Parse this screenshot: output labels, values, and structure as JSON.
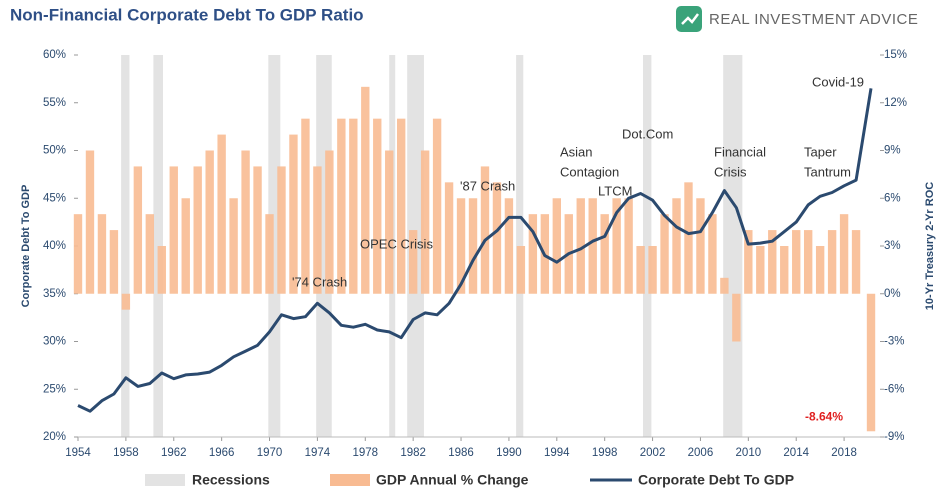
{
  "chart_data": {
    "type": "bar-line",
    "title": "Non-Financial Corporate Debt To GDP Ratio",
    "brand": "REAL INVESTMENT ADVICE",
    "ylabel": "Corporate Debt To GDP",
    "y2label": "10-Yr Treasury 2-Yr ROC",
    "x": [
      1954,
      1955,
      1956,
      1957,
      1958,
      1959,
      1960,
      1961,
      1962,
      1963,
      1964,
      1965,
      1966,
      1967,
      1968,
      1969,
      1970,
      1971,
      1972,
      1973,
      1974,
      1975,
      1976,
      1977,
      1978,
      1979,
      1980,
      1981,
      1982,
      1983,
      1984,
      1985,
      1986,
      1987,
      1988,
      1989,
      1990,
      1991,
      1992,
      1993,
      1994,
      1995,
      1996,
      1997,
      1998,
      1999,
      2000,
      2001,
      2002,
      2003,
      2004,
      2005,
      2006,
      2007,
      2008,
      2009,
      2010,
      2011,
      2012,
      2013,
      2014,
      2015,
      2016,
      2017,
      2018,
      2019,
      2020.25
    ],
    "xlim": [
      1954,
      2021
    ],
    "xticks": [
      1954,
      1958,
      1962,
      1966,
      1970,
      1974,
      1978,
      1982,
      1986,
      1990,
      1994,
      1998,
      2002,
      2006,
      2010,
      2014,
      2018
    ],
    "ylim": [
      20,
      60
    ],
    "yticks": [
      {
        "value": 20,
        "label": "20%"
      },
      {
        "value": 25,
        "label": "25%"
      },
      {
        "value": 30,
        "label": "30%"
      },
      {
        "value": 35,
        "label": "35%"
      },
      {
        "value": 40,
        "label": "40%"
      },
      {
        "value": 45,
        "label": "45%"
      },
      {
        "value": 50,
        "label": "50%"
      },
      {
        "value": 55,
        "label": "55%"
      },
      {
        "value": 60,
        "label": "60%"
      }
    ],
    "y2lim": [
      -9,
      15
    ],
    "y2ticks": [
      {
        "value": -9,
        "label": "-9%"
      },
      {
        "value": -6,
        "label": "-6%"
      },
      {
        "value": -3,
        "label": "-3%"
      },
      {
        "value": 0,
        "label": "0%"
      },
      {
        "value": 3,
        "label": "3%"
      },
      {
        "value": 6,
        "label": "6%"
      },
      {
        "value": 9,
        "label": "9%"
      },
      {
        "value": 12,
        "label": "12%"
      },
      {
        "value": 15,
        "label": "15%"
      }
    ],
    "recessions": {
      "name": "Recessions",
      "color": "#e3e3e3",
      "spans": [
        {
          "start": 1957.6,
          "end": 1958.3
        },
        {
          "start": 1960.3,
          "end": 1961.1
        },
        {
          "start": 1969.9,
          "end": 1970.9
        },
        {
          "start": 1973.9,
          "end": 1975.2
        },
        {
          "start": 1980.0,
          "end": 1980.5
        },
        {
          "start": 1981.5,
          "end": 1982.9
        },
        {
          "start": 1990.6,
          "end": 1991.2
        },
        {
          "start": 2001.2,
          "end": 2001.9
        },
        {
          "start": 2007.9,
          "end": 2009.5
        }
      ]
    },
    "series": [
      {
        "name": "GDP Annual % Change",
        "color": "#f8bb92",
        "axis": "y2",
        "values": [
          5,
          9,
          5,
          4,
          -1,
          8,
          5,
          3,
          8,
          6,
          8,
          9,
          10,
          6,
          9,
          8,
          5,
          8,
          10,
          11,
          8,
          9,
          11,
          11,
          13,
          11,
          9,
          11,
          4,
          9,
          11,
          7,
          6,
          6,
          8,
          7,
          6,
          3,
          5,
          5,
          6,
          5,
          6,
          6,
          5,
          6,
          6,
          3,
          3,
          5,
          6,
          7,
          6,
          5,
          1,
          -3,
          4,
          3,
          4,
          3,
          4,
          4,
          3,
          4,
          5,
          4,
          -8.64
        ],
        "value_labels": [
          null,
          null,
          null,
          null,
          null,
          null,
          null,
          null,
          null,
          null,
          null,
          null,
          null,
          null,
          null,
          null,
          null,
          null,
          null,
          null,
          null,
          null,
          null,
          null,
          null,
          null,
          null,
          null,
          null,
          null,
          null,
          null,
          null,
          null,
          null,
          null,
          null,
          null,
          null,
          null,
          null,
          null,
          null,
          null,
          null,
          null,
          null,
          null,
          null,
          null,
          null,
          null,
          null,
          null,
          null,
          null,
          null,
          null,
          null,
          null,
          null,
          null,
          null,
          null,
          null,
          null,
          "-8.64%"
        ]
      },
      {
        "name": "Corporate Debt To GDP",
        "color": "#2b4a6f",
        "values": [
          23.3,
          22.7,
          23.8,
          24.5,
          26.2,
          25.3,
          25.6,
          26.7,
          26.1,
          26.5,
          26.6,
          26.8,
          27.5,
          28.4,
          29.0,
          29.6,
          31.0,
          32.8,
          32.4,
          32.6,
          34.0,
          33.0,
          31.7,
          31.5,
          31.8,
          31.2,
          31.0,
          30.4,
          32.3,
          33.0,
          32.8,
          34.0,
          36.0,
          38.5,
          40.6,
          41.6,
          43.0,
          43.0,
          41.5,
          39.0,
          38.3,
          39.2,
          39.7,
          40.5,
          41.0,
          43.5,
          45.0,
          45.5,
          44.8,
          43.2,
          42.0,
          41.3,
          41.5,
          43.5,
          45.8,
          44.0,
          40.2,
          40.3,
          40.5,
          41.5,
          42.5,
          44.3,
          45.2,
          45.6,
          46.3,
          46.9,
          56.5
        ]
      }
    ],
    "annotations": [
      "'74 Crash",
      "OPEC Crisis",
      "'87 Crash",
      "Asian",
      "Contagion",
      "LTCM",
      "Dot.Com",
      "Financial",
      "Crisis",
      "Taper",
      "Tantrum",
      "Covid-19"
    ]
  }
}
